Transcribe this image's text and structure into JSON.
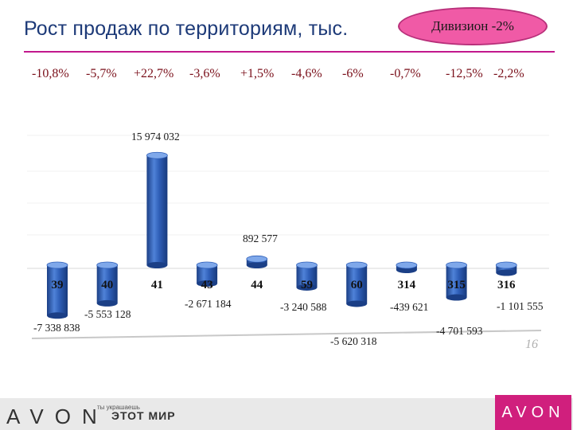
{
  "header": {
    "title": "Рост продаж по территориям, тыс.",
    "badge": "Дивизион  -2%"
  },
  "growth_labels": [
    "-10,8%",
    "-5,7%",
    "+22,7%",
    "-3,6%",
    "+1,5%",
    "-4,6%",
    "-6%",
    "-0,7%",
    "-12,5%",
    "-2,2%"
  ],
  "chart_data": {
    "type": "bar",
    "categories": [
      "39",
      "40",
      "41",
      "43",
      "44",
      "59",
      "60",
      "314",
      "315",
      "316"
    ],
    "values": [
      -7338838,
      -5553128,
      15974032,
      -2671184,
      892577,
      -3240588,
      -5620318,
      -439621,
      -4701593,
      -1101555
    ],
    "value_labels": [
      "-7 338 838",
      "-5 553 128",
      "15 974 032",
      "-2 671 184",
      "892 577",
      "-3 240 588",
      "-5 620 318",
      "-439 621",
      "-4 701 593",
      "-1 101 555"
    ],
    "title": "Рост продаж по территориям, тыс.",
    "colors": {
      "bar": "#2f5fb8",
      "bar_dark": "#1b3f86",
      "bar_light": "#6f9de6"
    }
  },
  "footer": {
    "brand_left": "AVON",
    "slogan_small": "ты украшаешь",
    "slogan": "ЭТОТ МИР",
    "brand_right": "AVON",
    "page_mark": "16"
  }
}
